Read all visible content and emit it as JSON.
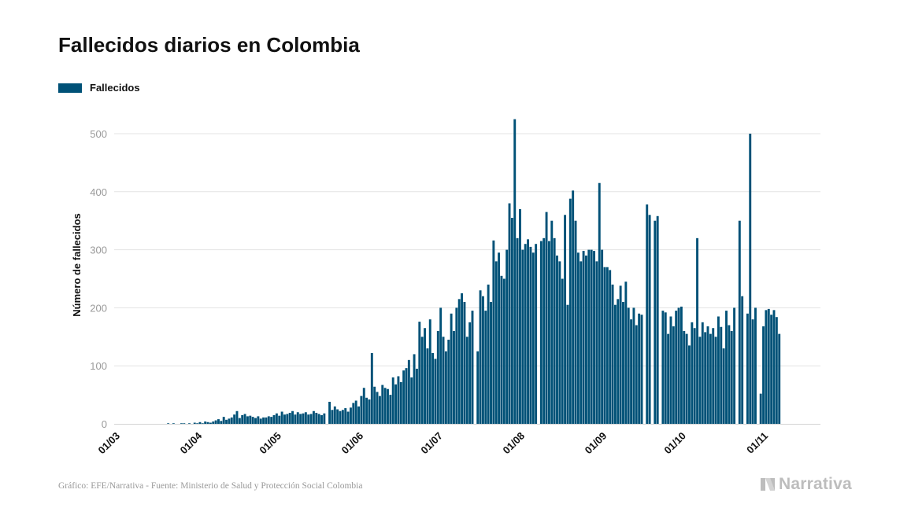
{
  "title": "Fallecidos diarios en Colombia",
  "legend": {
    "label": "Fallecidos",
    "color": "#005177"
  },
  "footer": "Gráfico: EFE/Narrativa - Fuente: Ministerio de Salud y Protección Social Colombia",
  "logo": {
    "text": "Narrativa",
    "icon": "narrativa-logo-icon"
  },
  "chart_data": {
    "type": "bar",
    "ylabel": "Número de fallecidos",
    "ylim": [
      0,
      540
    ],
    "yticks": [
      0,
      100,
      200,
      300,
      400,
      500
    ],
    "grid": true,
    "legend_position": "top-left",
    "series": [
      {
        "name": "Fallecidos",
        "color": "#005177"
      }
    ],
    "start_day_of_year": 65,
    "xtick_labels": [
      {
        "label": "01/03",
        "day": 60
      },
      {
        "label": "01/04",
        "day": 91
      },
      {
        "label": "01/05",
        "day": 121
      },
      {
        "label": "01/06",
        "day": 152
      },
      {
        "label": "01/07",
        "day": 182
      },
      {
        "label": "01/08",
        "day": 213
      },
      {
        "label": "01/09",
        "day": 244
      },
      {
        "label": "01/10",
        "day": 274
      },
      {
        "label": "01/11",
        "day": 305
      }
    ],
    "values": [
      0,
      0,
      0,
      0,
      0,
      0,
      0,
      0,
      0,
      0,
      0,
      0,
      0,
      0,
      0,
      1,
      0,
      1,
      0,
      0,
      1,
      1,
      0,
      1,
      0,
      2,
      1,
      3,
      1,
      4,
      3,
      2,
      4,
      6,
      8,
      5,
      12,
      7,
      9,
      11,
      16,
      22,
      10,
      15,
      17,
      13,
      14,
      12,
      10,
      13,
      9,
      11,
      11,
      13,
      12,
      15,
      18,
      14,
      21,
      16,
      17,
      19,
      22,
      16,
      20,
      17,
      18,
      20,
      16,
      17,
      22,
      19,
      17,
      15,
      18,
      0,
      38,
      24,
      30,
      25,
      22,
      24,
      27,
      21,
      28,
      36,
      40,
      30,
      48,
      62,
      45,
      42,
      122,
      64,
      55,
      48,
      67,
      62,
      60,
      50,
      80,
      68,
      82,
      72,
      92,
      96,
      110,
      80,
      120,
      95,
      176,
      150,
      165,
      130,
      180,
      122,
      112,
      160,
      200,
      150,
      125,
      145,
      190,
      160,
      200,
      215,
      225,
      210,
      150,
      175,
      195,
      0,
      125,
      230,
      220,
      195,
      240,
      210,
      316,
      280,
      295,
      255,
      250,
      300,
      380,
      355,
      525,
      320,
      370,
      300,
      310,
      318,
      305,
      295,
      310,
      0,
      315,
      320,
      365,
      315,
      350,
      320,
      290,
      280,
      250,
      360,
      205,
      388,
      402,
      350,
      295,
      280,
      298,
      290,
      300,
      300,
      298,
      280,
      415,
      300,
      270,
      270,
      265,
      240,
      205,
      215,
      238,
      210,
      245,
      200,
      180,
      200,
      170,
      190,
      188,
      0,
      378,
      360,
      0,
      350,
      358,
      0,
      195,
      192,
      155,
      185,
      168,
      195,
      200,
      202,
      160,
      155,
      135,
      175,
      165,
      320,
      150,
      175,
      158,
      168,
      155,
      165,
      150,
      185,
      167,
      130,
      195,
      170,
      160,
      200,
      0,
      350,
      220,
      0,
      190,
      500,
      180,
      200,
      0,
      52,
      168,
      196,
      198,
      188,
      196,
      184,
      155
    ]
  }
}
